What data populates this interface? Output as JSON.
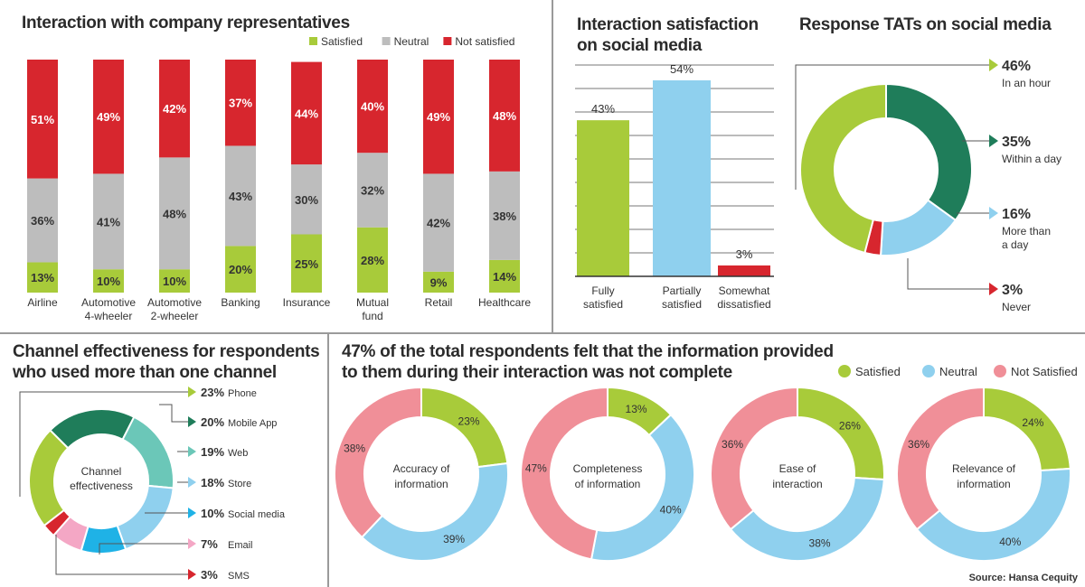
{
  "colors": {
    "green": "#a8cb3a",
    "gray": "#bdbdbd",
    "red": "#d7262e",
    "blue": "#8fd0ee",
    "darkgreen": "#1f7d5a",
    "teal": "#6bc7b8",
    "pink": "#f08f98",
    "cyan": "#1fb2e6",
    "lightpink": "#f4a7c5"
  },
  "source": "Source: Hansa Cequity",
  "chart_data": [
    {
      "type": "bar",
      "subtype": "stacked-100",
      "title": "Interaction with company representatives",
      "categories": [
        [
          "Airline"
        ],
        [
          "Automotive",
          "4-wheeler"
        ],
        [
          "Automotive",
          "2-wheeler"
        ],
        [
          "Banking"
        ],
        [
          "Insurance"
        ],
        [
          "Mutual",
          "fund"
        ],
        [
          "Retail"
        ],
        [
          "Healthcare"
        ]
      ],
      "series": [
        {
          "name": "Satisfied",
          "color": "#a8cb3a",
          "values": [
            13,
            10,
            10,
            20,
            25,
            28,
            9,
            14
          ],
          "labels": [
            "13%",
            "10%",
            "10%",
            "20%",
            "25%",
            "28%",
            "9%",
            "14%"
          ]
        },
        {
          "name": "Neutral",
          "color": "#bdbdbd",
          "values": [
            36,
            41,
            48,
            43,
            30,
            32,
            42,
            38
          ],
          "labels": [
            "36%",
            "41%",
            "48%",
            "43%",
            "30%",
            "32%",
            "42%",
            "38%"
          ]
        },
        {
          "name": "Not satisfied",
          "color": "#d7262e",
          "values": [
            51,
            49,
            42,
            37,
            44,
            40,
            49,
            48
          ],
          "labels": [
            "51%",
            "49%",
            "42%",
            "37%",
            "44%",
            "40%",
            "49%",
            "48%"
          ]
        }
      ],
      "legend": "top-right"
    },
    {
      "type": "bar",
      "title": "Interaction satisfaction on social media",
      "categories": [
        [
          "Fully",
          "satisfied"
        ],
        [
          "Partially",
          "satisfied"
        ],
        [
          "Somewhat",
          "dissatisfied"
        ]
      ],
      "values": [
        43,
        54,
        3
      ],
      "labels": [
        "43%",
        "54%",
        "3%"
      ],
      "colors": [
        "#a8cb3a",
        "#8fd0ee",
        "#d7262e"
      ],
      "ylim": [
        0,
        60
      ],
      "grid": true
    },
    {
      "type": "pie",
      "donut": true,
      "title": "Response TATs on social media",
      "slices": [
        {
          "value": 46,
          "label": "46%",
          "desc": [
            "In an hour"
          ],
          "color": "#a8cb3a"
        },
        {
          "value": 35,
          "label": "35%",
          "desc": [
            "Within a day"
          ],
          "color": "#1f7d5a"
        },
        {
          "value": 16,
          "label": "16%",
          "desc": [
            "More than",
            "a day"
          ],
          "color": "#8fd0ee"
        },
        {
          "value": 3,
          "label": "3%",
          "desc": [
            "Never"
          ],
          "color": "#d7262e"
        }
      ],
      "legend": "right"
    },
    {
      "type": "pie",
      "donut": true,
      "title": "Channel effectiveness for respondents who used more than one channel",
      "center_label": [
        "Channel",
        "effectiveness"
      ],
      "slices": [
        {
          "value": 23,
          "label": "23%",
          "name": "Phone",
          "color": "#a8cb3a"
        },
        {
          "value": 20,
          "label": "20%",
          "name": "Mobile App",
          "color": "#1f7d5a"
        },
        {
          "value": 19,
          "label": "19%",
          "name": "Web",
          "color": "#6bc7b8"
        },
        {
          "value": 18,
          "label": "18%",
          "name": "Store",
          "color": "#8fd0ee"
        },
        {
          "value": 10,
          "label": "10%",
          "name": "Social media",
          "color": "#1fb2e6"
        },
        {
          "value": 7,
          "label": "7%",
          "name": "Email",
          "color": "#f4a7c5"
        },
        {
          "value": 3,
          "label": "3%",
          "name": "SMS",
          "color": "#d7262e"
        }
      ],
      "legend": "right"
    },
    {
      "type": "pie",
      "donut": true,
      "title": "47% of the total respondents felt that the information provided to them during their interaction was not complete",
      "legend": "top-right",
      "legend_items": [
        {
          "name": "Satisfied",
          "color": "#a8cb3a"
        },
        {
          "name": "Neutral",
          "color": "#8fd0ee"
        },
        {
          "name": "Not Satisfied",
          "color": "#f08f98"
        }
      ],
      "charts": [
        {
          "center_label": [
            "Accuracy of",
            "information"
          ],
          "values": [
            23,
            39,
            38
          ],
          "labels": [
            "23%",
            "39%",
            "38%"
          ]
        },
        {
          "center_label": [
            "Completeness",
            "of information"
          ],
          "values": [
            13,
            40,
            47
          ],
          "labels": [
            "13%",
            "40%",
            "47%"
          ]
        },
        {
          "center_label": [
            "Ease of",
            "interaction"
          ],
          "values": [
            26,
            38,
            36
          ],
          "labels": [
            "26%",
            "38%",
            "36%"
          ]
        },
        {
          "center_label": [
            "Relevance of",
            "information"
          ],
          "values": [
            24,
            40,
            36
          ],
          "labels": [
            "24%",
            "40%",
            "36%"
          ]
        }
      ]
    }
  ]
}
